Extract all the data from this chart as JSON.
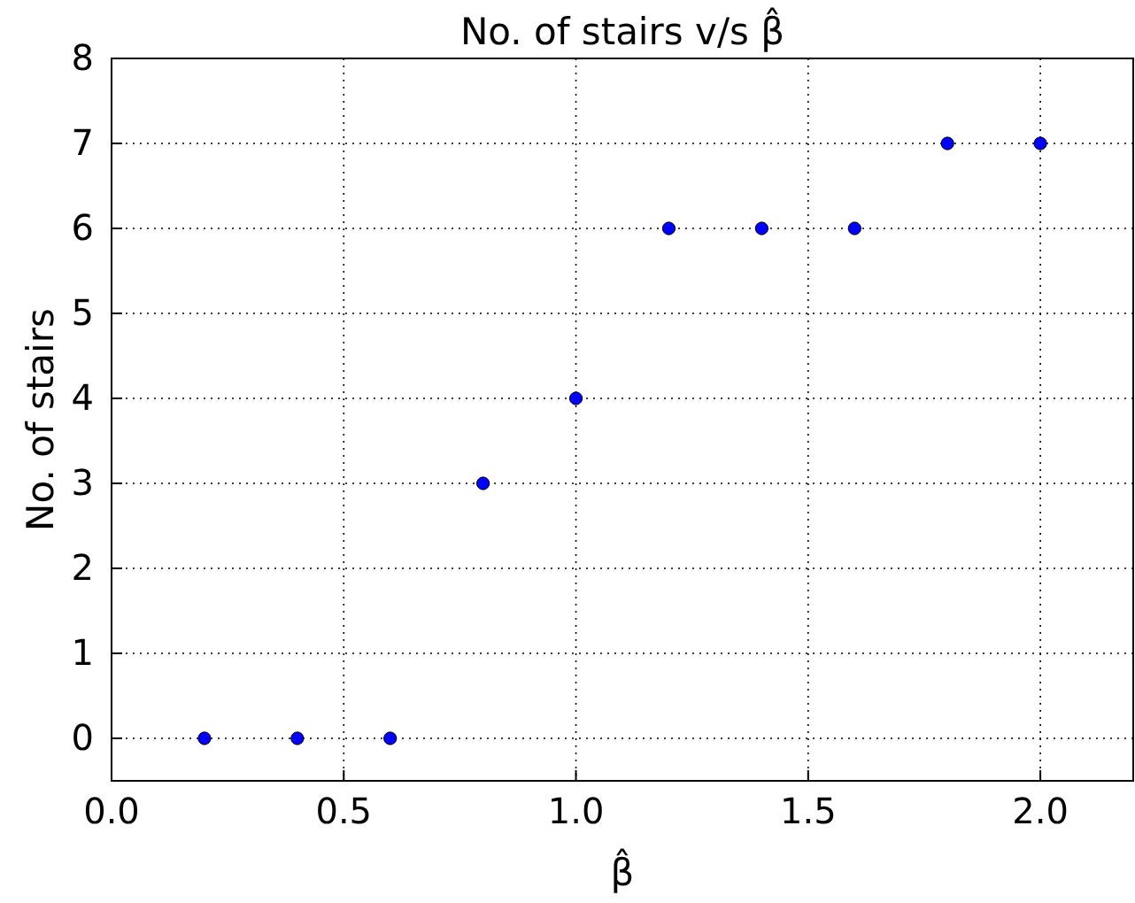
{
  "chart_data": {
    "type": "scatter",
    "title": "No. of stairs v/s β̂",
    "xlabel": "β̂",
    "ylabel": "No. of stairs",
    "x": [
      0.2,
      0.4,
      0.6,
      0.8,
      1.0,
      1.2,
      1.4,
      1.6,
      1.8,
      2.0
    ],
    "series": [
      {
        "color": "#0000ff",
        "values": [
          0,
          0,
          0,
          3,
          4,
          6,
          6,
          6,
          7,
          7
        ]
      }
    ],
    "xlim": [
      0,
      2.2
    ],
    "xticks": [
      {
        "value": 0,
        "label": "0.0"
      },
      0.5,
      {
        "value": 1,
        "label": "1.0"
      },
      1.5,
      {
        "value": 2,
        "label": "2.0"
      }
    ],
    "ylim": [
      -0.5,
      8
    ],
    "yticks": [
      0,
      1,
      2,
      3,
      4,
      5,
      6,
      7,
      8
    ],
    "grid": true,
    "marker": "circle"
  }
}
